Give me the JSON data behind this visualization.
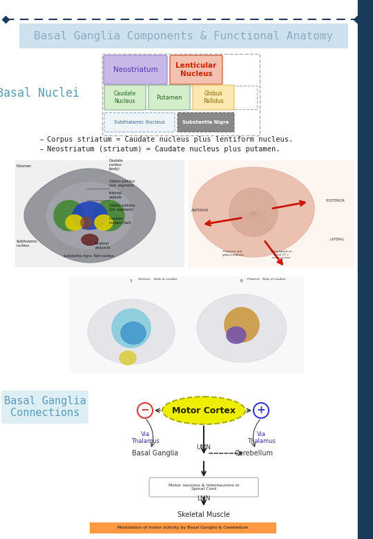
{
  "title": "Basal Ganglia Components & Functional Anatomy",
  "title_color": "#8aacbf",
  "title_bg": "#cde2ee",
  "basal_nuclei_label": "Basal Nuclei",
  "basal_nuclei_color": "#5b9bba",
  "border_color": "#1a3a5c",
  "right_bar_color": "#1a3a5c",
  "diagram": {
    "neostriatum_text": "Neostriatum",
    "neostriatum_bg": "#c8b8e8",
    "neostriatum_edge": "#9a80cc",
    "neostriatum_color": "#5533aa",
    "lenticular_text": "Lenticular\nNucleus",
    "lenticular_bg": "#f4c0b0",
    "lenticular_edge": "#cc4422",
    "lenticular_color": "#cc2200",
    "caudate_text": "Caudate\nNucleus",
    "caudate_bg": "#d4eecc",
    "caudate_edge": "#88aa88",
    "caudate_color": "#226622",
    "putamen_text": "Putamen",
    "putamen_bg": "#d4eecc",
    "putamen_edge": "#88aa88",
    "putamen_color": "#226622",
    "globus_text": "Globus\nPallidus",
    "globus_bg": "#ffe8b0",
    "globus_edge": "#ddbb66",
    "globus_color": "#886600",
    "subthalamic_text": "Subthalamic Nucleus",
    "subthalamic_bg": "#eef4f8",
    "subthalamic_edge": "#88aacc",
    "subthalamic_color": "#336699",
    "substantia_text": "Substantia Nigra",
    "substantia_bg": "#888888",
    "substantia_color": "#ffffff"
  },
  "bullet1": "Corpus striatum = Caudate nucleus plus lentiform nucleus.",
  "bullet2": "Neostriatum (striatum) = Caudate nucleus plus putamen.",
  "basal_ganglia_connections_label": "Basal Ganglia\nConnections",
  "bg_color": "#ffffff",
  "minus_color": "#dd3333",
  "plus_color": "#3333dd",
  "motor_cortex_bg": "#eeee00",
  "motor_cortex_edge": "#aaaa00",
  "arrow_color": "#555555",
  "banner_color": "#ff9944",
  "banner_text": "Modulation of motor activity by Basal Ganglia & Cerebellum"
}
